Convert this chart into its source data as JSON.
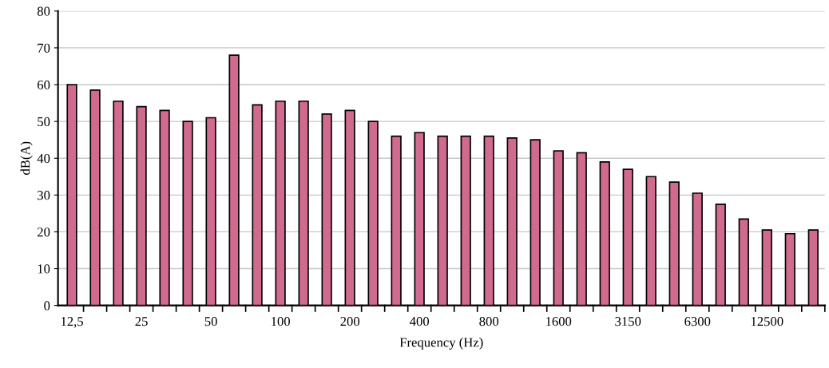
{
  "chart_data": {
    "type": "bar",
    "xlabel": "Frequency (Hz)",
    "ylabel": "dB(A)",
    "categories": [
      "12,5",
      null,
      null,
      "25",
      null,
      null,
      "50",
      null,
      null,
      "100",
      null,
      null,
      "200",
      null,
      null,
      "400",
      null,
      null,
      "800",
      null,
      null,
      "1600",
      null,
      null,
      "3150",
      null,
      null,
      "6300",
      null,
      null,
      "12500",
      null,
      null
    ],
    "values": [
      60,
      58.5,
      55.5,
      54,
      53,
      50,
      51,
      68,
      54.5,
      55.5,
      55.5,
      52,
      53,
      50,
      46,
      47,
      46,
      46,
      46,
      45.5,
      45,
      42,
      41.5,
      39,
      37,
      35,
      33.5,
      30.5,
      27.5,
      23.5,
      20.5,
      19.5,
      20.5
    ],
    "color": "#d06a8e",
    "ylim": [
      0,
      80
    ],
    "yticks": [
      0,
      10,
      20,
      30,
      40,
      50,
      60,
      70,
      80
    ],
    "grid": "y"
  }
}
